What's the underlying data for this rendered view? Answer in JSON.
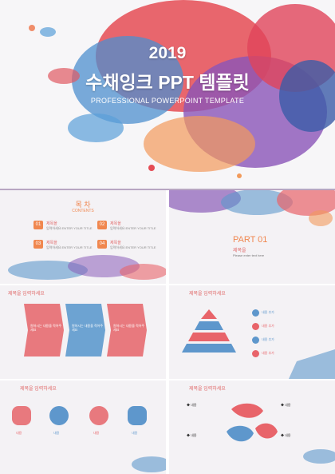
{
  "hero": {
    "year": "2019",
    "title": "수채잉크 PPT 템플릿",
    "subtitle": "PROFESSIONAL POWERPOINT TEMPLATE"
  },
  "toc": {
    "heading": "목 차",
    "subheading": "CONTENTS",
    "items": [
      {
        "num": "01",
        "title": "제목을",
        "sub": "입력하세요 ENTER YOUR TITLE"
      },
      {
        "num": "02",
        "title": "제목을",
        "sub": "입력하세요 ENTER YOUR TITLE"
      },
      {
        "num": "03",
        "title": "제목을",
        "sub": "입력하세요 ENTER YOUR TITLE"
      },
      {
        "num": "04",
        "title": "제목을",
        "sub": "입력하세요 ENTER YOUR TITLE"
      }
    ]
  },
  "part": {
    "label": "PART 01",
    "title": "제목을",
    "desc": "Please enter text here"
  },
  "slide_title": "제목을 입력하세요",
  "arrows_text": "원하시는 내용을 적어주세요",
  "list_items": [
    "내용 추가",
    "내용 추가",
    "내용 추가",
    "내용 추가"
  ],
  "icon_labels": [
    "내용",
    "내용",
    "내용",
    "내용"
  ],
  "content_label": "◆ 내용",
  "colors": {
    "red": "#e8646a",
    "blue": "#5e97cc",
    "orange": "#f0874f",
    "purple": "#8a5cb8"
  }
}
